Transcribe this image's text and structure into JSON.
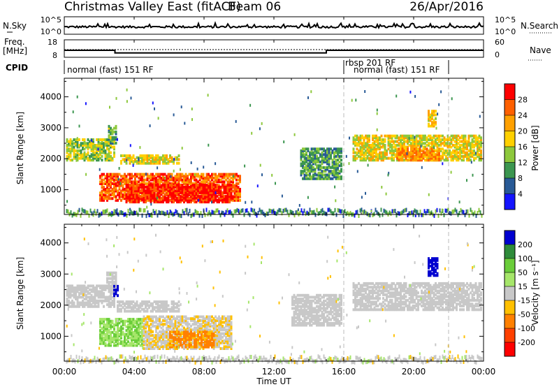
{
  "header": {
    "title": "Christmas Valley East (fitACF)",
    "beam": "Beam 06",
    "date": "26/Apr/2016"
  },
  "summary_panels": {
    "nsky_label": "N.Sky",
    "nsky_ticks": [
      "10^5",
      "10^0"
    ],
    "nsearch_label": "N.Search",
    "nsearch_ticks": [
      "10^5",
      "10^0"
    ],
    "freq_label_1": "Freq.",
    "freq_label_2": "[MHz]",
    "freq_ticks": [
      "18",
      "8"
    ],
    "nave_label": "Nave",
    "nave_ticks": [
      "60",
      "0"
    ],
    "cpid_label": "CPID",
    "cpid_segments": [
      {
        "label": "normal (fast) 151 RF",
        "start_hr": 0,
        "end_hr": 16
      },
      {
        "label": "rbsp 201 RF",
        "start_hr": 16,
        "end_hr": 22
      },
      {
        "label": "normal (fast) 151 RF",
        "start_hr": 16.4,
        "end_hr": 22
      }
    ],
    "freq_series_mhz": [
      [
        0,
        12
      ],
      [
        2.9,
        12
      ],
      [
        2.9,
        10.5
      ],
      [
        15,
        10.5
      ],
      [
        15,
        12
      ],
      [
        24,
        12
      ]
    ]
  },
  "axes": {
    "time_ticks": [
      "00:00",
      "04:00",
      "08:00",
      "12:00",
      "16:00",
      "20:00",
      "00:00"
    ],
    "xlabel": "Time UT",
    "ylabel": "Slant Range [km]",
    "range_ticks": [
      "4000",
      "3000",
      "2000",
      "1000"
    ],
    "xlim_hours": [
      0,
      24
    ],
    "ylim_km": [
      200,
      4600
    ]
  },
  "chart_data": [
    {
      "type": "heatmap",
      "name": "power",
      "ylabel": "Slant Range [km]",
      "xlabel": "Time UT",
      "colorbar_label": "Power [dB]",
      "colorbar_ticks": [
        "28",
        "24",
        "20",
        "16",
        "12",
        "8",
        "4"
      ],
      "colorbar_colors": [
        "#ff0000",
        "#ff6000",
        "#ffa000",
        "#ffd000",
        "#8dc83c",
        "#3c9650",
        "#285a96",
        "#1414ff"
      ],
      "regions": [
        {
          "t0": 0.1,
          "t1": 2.9,
          "r0": 2000,
          "r1": 2700,
          "level": 0.45
        },
        {
          "t0": 2.5,
          "t1": 3.0,
          "r0": 2550,
          "r1": 3150,
          "level": 0.35
        },
        {
          "t0": 3.2,
          "t1": 6.5,
          "r0": 1900,
          "r1": 2200,
          "level": 0.55
        },
        {
          "t0": 2.0,
          "t1": 10.0,
          "r0": 700,
          "r1": 1600,
          "level": 0.85
        },
        {
          "t0": 3.5,
          "t1": 9.5,
          "r0": 650,
          "r1": 1200,
          "level": 1.0
        },
        {
          "t0": 13.5,
          "t1": 15.8,
          "r0": 1400,
          "r1": 2400,
          "level": 0.3
        },
        {
          "t0": 16.5,
          "t1": 23.9,
          "r0": 2000,
          "r1": 2800,
          "level": 0.55
        },
        {
          "t0": 19.0,
          "t1": 21.5,
          "r0": 2000,
          "r1": 2400,
          "level": 0.75
        },
        {
          "t0": 20.8,
          "t1": 21.3,
          "r0": 3100,
          "r1": 3600,
          "level": 0.6
        }
      ]
    },
    {
      "type": "heatmap",
      "name": "velocity",
      "ylabel": "Slant Range [km]",
      "xlabel": "Time UT",
      "colorbar_label": "Velocity [m s⁻¹]",
      "colorbar_ticks": [
        "200",
        "100",
        "50",
        "15",
        "-15",
        "-50",
        "-100",
        "-200"
      ],
      "colorbar_colors": [
        "#0000d0",
        "#2e8b3a",
        "#6acd3a",
        "#a6e66a",
        "#c8c8c8",
        "#ffc000",
        "#ff8000",
        "#ff4000",
        "#ff0000"
      ],
      "regions": [
        {
          "t0": 0.1,
          "t1": 2.9,
          "r0": 2000,
          "r1": 2700,
          "v": 0
        },
        {
          "t0": 2.4,
          "t1": 3.0,
          "r0": 2600,
          "r1": 3100,
          "v": 0
        },
        {
          "t0": 2.8,
          "t1": 3.1,
          "r0": 2350,
          "r1": 2700,
          "v": 250
        },
        {
          "t0": 3.0,
          "t1": 6.5,
          "r0": 1850,
          "r1": 2200,
          "v": 0
        },
        {
          "t0": 2.0,
          "t1": 4.5,
          "r0": 750,
          "r1": 1650,
          "v": 30
        },
        {
          "t0": 4.5,
          "t1": 9.5,
          "r0": 650,
          "r1": 1700,
          "v": -10
        },
        {
          "t0": 6.0,
          "t1": 8.5,
          "r0": 700,
          "r1": 1200,
          "v": -60
        },
        {
          "t0": 13.0,
          "t1": 15.8,
          "r0": 1400,
          "r1": 2400,
          "v": 0
        },
        {
          "t0": 16.5,
          "t1": 23.9,
          "r0": 1900,
          "r1": 2800,
          "v": 0
        },
        {
          "t0": 20.8,
          "t1": 21.4,
          "r0": 3000,
          "r1": 3600,
          "v": 250
        }
      ]
    }
  ]
}
